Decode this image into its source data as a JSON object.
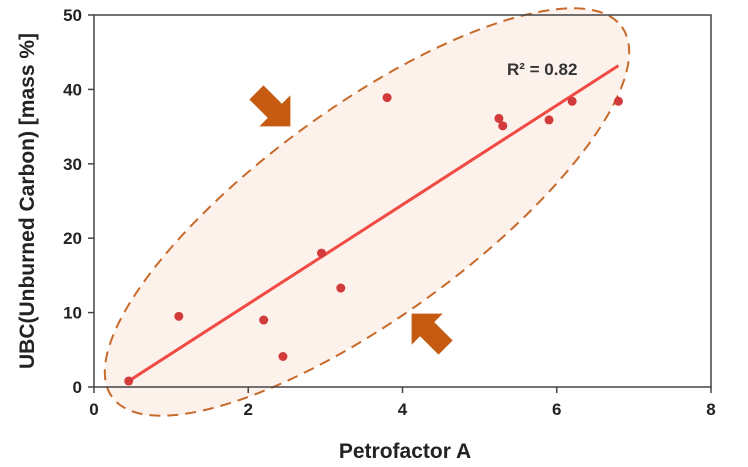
{
  "chart_data": {
    "type": "scatter",
    "xlabel": "Petrofactor A",
    "ylabel": "UBC(Unburned Carbon) [mass %]",
    "xlim": [
      0,
      8
    ],
    "ylim": [
      0,
      50
    ],
    "x_ticks": [
      "0",
      "2",
      "4",
      "6",
      "8"
    ],
    "y_ticks": [
      "0",
      "10",
      "20",
      "30",
      "40",
      "50"
    ],
    "points": [
      {
        "x": 0.45,
        "y": 0.8
      },
      {
        "x": 1.1,
        "y": 9.5
      },
      {
        "x": 2.2,
        "y": 9.0
      },
      {
        "x": 2.45,
        "y": 4.1
      },
      {
        "x": 2.95,
        "y": 18.0
      },
      {
        "x": 3.2,
        "y": 13.3
      },
      {
        "x": 3.8,
        "y": 38.9
      },
      {
        "x": 5.25,
        "y": 36.1
      },
      {
        "x": 5.3,
        "y": 35.1
      },
      {
        "x": 5.9,
        "y": 35.9
      },
      {
        "x": 6.2,
        "y": 38.4
      },
      {
        "x": 6.8,
        "y": 38.4
      }
    ],
    "trendline": {
      "x": [
        0.45,
        6.8
      ],
      "y": [
        0.8,
        43.2
      ]
    },
    "annotation": "R² = 0.82",
    "grid": false,
    "colors": {
      "points": "#d13b3b",
      "trendline": "#f04a43",
      "ellipse_stroke": "#c76a2a",
      "ellipse_fill": "#fdf1ec",
      "arrows": "#c55a11"
    }
  }
}
